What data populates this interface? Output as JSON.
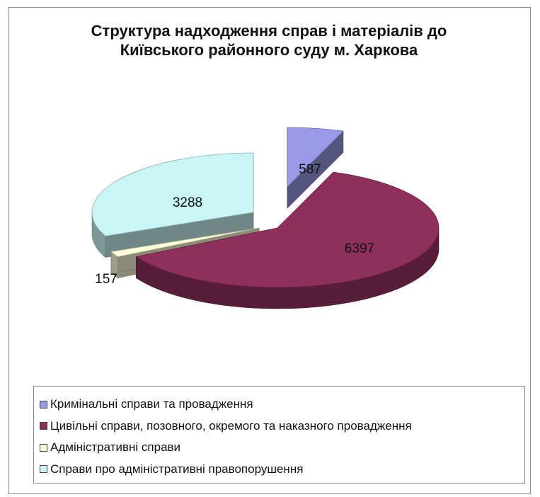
{
  "chart_data": {
    "type": "pie",
    "title": "Структура надходження справ і матеріалів до\nКиївського районного суду м. Харкова",
    "categories": [
      "Кримінальні справи та провадження",
      "Цивільні справи, позовного, окремого та наказного провадження",
      "Адміністративні справи",
      "Справи про адміністративні правопорушення"
    ],
    "values": [
      587,
      6397,
      157,
      3288
    ],
    "data_labels": [
      "587",
      "6397",
      "157",
      "3288"
    ],
    "colors": [
      "#9a9ae8",
      "#8e2f5c",
      "#fdfdd9",
      "#c9f5f5"
    ],
    "style": "3d-exploded",
    "legend_position": "bottom"
  }
}
